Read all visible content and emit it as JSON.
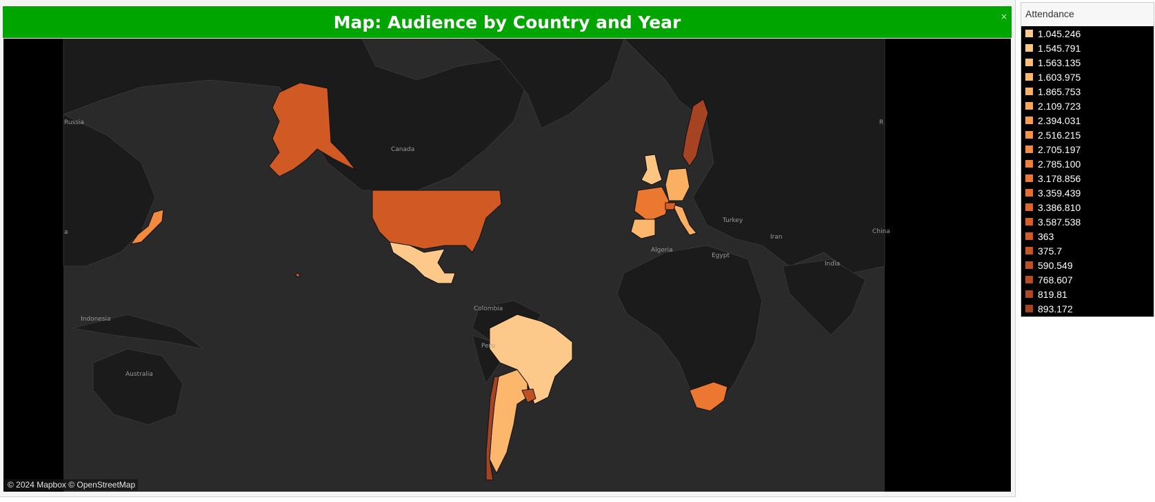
{
  "dashboard": {
    "title": "Map: Audience by Country and Year",
    "close_glyph": "×"
  },
  "map": {
    "attribution": "© 2024 Mapbox © OpenStreetMap",
    "base_labels": [
      "Russia",
      "Canada",
      "Turkey",
      "Iran",
      "Algeria",
      "Egypt",
      "India",
      "China",
      "Colombia",
      "Peru",
      "Indonesia",
      "Australia",
      "a",
      "R"
    ],
    "colors": {
      "background": "#000000",
      "ocean": "#2a2a2a",
      "land": "#1b1b1b"
    }
  },
  "legend": {
    "title": "Attendance",
    "items": [
      {
        "label": "1.045.246",
        "color": "#fdc98a"
      },
      {
        "label": "1.545.791",
        "color": "#fdc582"
      },
      {
        "label": "1.563.135",
        "color": "#fdbe77"
      },
      {
        "label": "1.603.975",
        "color": "#fcb76c"
      },
      {
        "label": "1.865.753",
        "color": "#fbaf62"
      },
      {
        "label": "2.109.723",
        "color": "#faa659"
      },
      {
        "label": "2.394.031",
        "color": "#f89d50"
      },
      {
        "label": "2.516.215",
        "color": "#f69347"
      },
      {
        "label": "2.705.197",
        "color": "#f38a3f"
      },
      {
        "label": "2.785.100",
        "color": "#f08038"
      },
      {
        "label": "3.178.856",
        "color": "#ec7731"
      },
      {
        "label": "3.359.439",
        "color": "#e76e2c"
      },
      {
        "label": "3.386.810",
        "color": "#e06628"
      },
      {
        "label": "3.587.538",
        "color": "#d95f26"
      },
      {
        "label": "363",
        "color": "#d15a24"
      },
      {
        "label": "375.7",
        "color": "#c95523"
      },
      {
        "label": "590.549",
        "color": "#c05022"
      },
      {
        "label": "768.607",
        "color": "#b74b22"
      },
      {
        "label": "819.81",
        "color": "#ae4722"
      },
      {
        "label": "893.172",
        "color": "#a54322"
      }
    ]
  }
}
